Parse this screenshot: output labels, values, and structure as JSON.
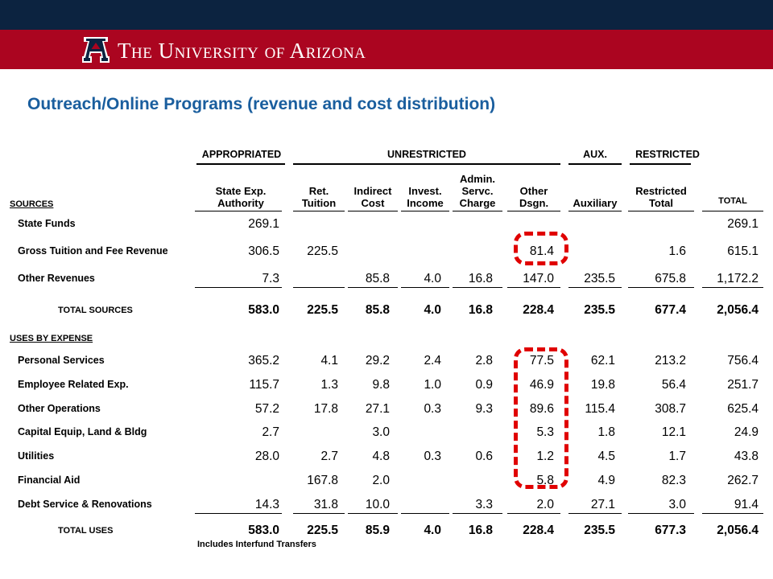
{
  "header": {
    "university_name": "The University of Arizona",
    "logo_letter": "A",
    "colors": {
      "navy": "#0c2340",
      "red": "#ab0520",
      "title_blue": "#1a5e9e",
      "highlight": "#e00000"
    }
  },
  "page_title": "Outreach/Online Programs (revenue and cost distribution)",
  "table": {
    "groups": {
      "appropriated": "APPROPRIATED",
      "unrestricted": "UNRESTRICTED",
      "aux": "AUX.",
      "restricted": "RESTRICTED"
    },
    "columns": [
      "State Exp.\nAuthority",
      "Ret.\nTuition",
      "Indirect\nCost",
      "Invest.\nIncome",
      "Admin.\nServc.\nCharge",
      "Other\nDsgn.",
      "Auxiliary",
      "Restricted\nTotal",
      "TOTAL"
    ],
    "sources_label": "SOURCES",
    "sources": [
      {
        "label": "State Funds",
        "values": [
          "269.1",
          "",
          "",
          "",
          "",
          "",
          "",
          "",
          "269.1"
        ]
      },
      {
        "label": "Gross Tuition and Fee Revenue",
        "values": [
          "306.5",
          "225.5",
          "",
          "",
          "",
          "81.4",
          "",
          "1.6",
          "615.1"
        ]
      },
      {
        "label": "Other Revenues",
        "values": [
          "7.3",
          "",
          "85.8",
          "4.0",
          "16.8",
          "147.0",
          "235.5",
          "675.8",
          "1,172.2"
        ]
      }
    ],
    "total_sources": {
      "label": "TOTAL SOURCES",
      "values": [
        "583.0",
        "225.5",
        "85.8",
        "4.0",
        "16.8",
        "228.4",
        "235.5",
        "677.4",
        "2,056.4"
      ]
    },
    "uses_label": "USES BY EXPENSE",
    "uses": [
      {
        "label": "Personal Services",
        "values": [
          "365.2",
          "4.1",
          "29.2",
          "2.4",
          "2.8",
          "77.5",
          "62.1",
          "213.2",
          "756.4"
        ]
      },
      {
        "label": "Employee Related Exp.",
        "values": [
          "115.7",
          "1.3",
          "9.8",
          "1.0",
          "0.9",
          "46.9",
          "19.8",
          "56.4",
          "251.7"
        ]
      },
      {
        "label": "Other Operations",
        "values": [
          "57.2",
          "17.8",
          "27.1",
          "0.3",
          "9.3",
          "89.6",
          "115.4",
          "308.7",
          "625.4"
        ]
      },
      {
        "label": "Capital Equip, Land & Bldg",
        "values": [
          "2.7",
          "",
          "3.0",
          "",
          "",
          "5.3",
          "1.8",
          "12.1",
          "24.9"
        ]
      },
      {
        "label": "Utilities",
        "values": [
          "28.0",
          "2.7",
          "4.8",
          "0.3",
          "0.6",
          "1.2",
          "4.5",
          "1.7",
          "43.8"
        ]
      },
      {
        "label": "Financial Aid",
        "values": [
          "",
          "167.8",
          "2.0",
          "",
          "",
          "5.8",
          "4.9",
          "82.3",
          "262.7"
        ]
      },
      {
        "label": "Debt Service & Renovations",
        "values": [
          "14.3",
          "31.8",
          "10.0",
          "",
          "3.3",
          "2.0",
          "27.1",
          "3.0",
          "91.4"
        ]
      }
    ],
    "total_uses": {
      "label": "TOTAL USES",
      "values": [
        "583.0",
        "225.5",
        "85.9",
        "4.0",
        "16.8",
        "228.4",
        "235.5",
        "677.3",
        "2,056.4"
      ]
    },
    "footnote": "Includes Interfund Transfers"
  }
}
